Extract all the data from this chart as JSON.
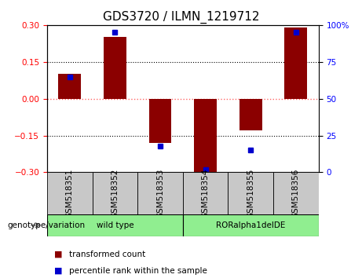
{
  "title": "GDS3720 / ILMN_1219712",
  "samples": [
    "GSM518351",
    "GSM518352",
    "GSM518353",
    "GSM518354",
    "GSM518355",
    "GSM518356"
  ],
  "bar_values": [
    0.1,
    0.25,
    -0.18,
    -0.3,
    -0.13,
    0.29
  ],
  "percentile_values": [
    65,
    95,
    18,
    2,
    15,
    95
  ],
  "ylim": [
    -0.3,
    0.3
  ],
  "yticks_left": [
    -0.3,
    -0.15,
    0,
    0.15,
    0.3
  ],
  "yticks_right": [
    0,
    25,
    50,
    75,
    100
  ],
  "bar_color": "#8B0000",
  "dot_color": "#0000CD",
  "hline_red_color": "#FF6666",
  "hline_black_color": "#000000",
  "bg_color": "#ffffff",
  "tick_area_color": "#d3d3d3",
  "group_color": "#90EE90",
  "group_label": "genotype/variation",
  "groups": [
    {
      "label": "wild type",
      "start": 0,
      "end": 2
    },
    {
      "label": "RORalpha1delDE",
      "start": 3,
      "end": 5
    }
  ],
  "legend_bar_label": "transformed count",
  "legend_dot_label": "percentile rank within the sample",
  "title_fontsize": 11,
  "tick_fontsize": 7.5,
  "legend_fontsize": 7.5
}
